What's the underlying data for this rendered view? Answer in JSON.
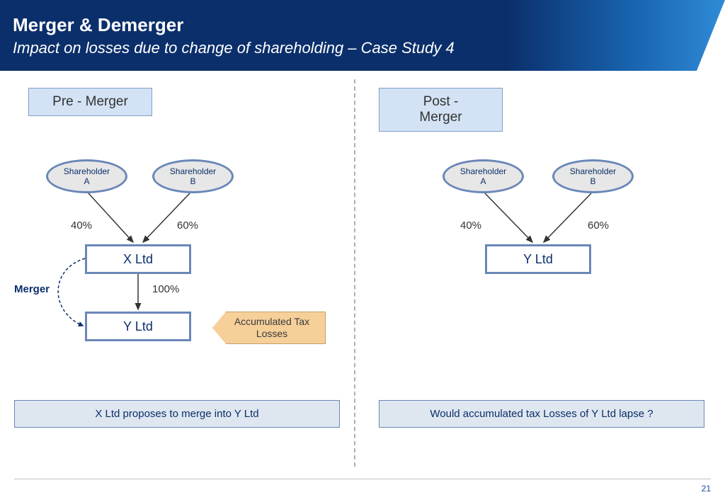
{
  "header": {
    "title": "Merger & Demerger",
    "subtitle": "Impact on losses due to change of shareholding – Case Study 4"
  },
  "left": {
    "badge": "Pre - Merger",
    "shareholderA": "Shareholder\nA",
    "shareholderB": "Shareholder\nB",
    "pctA": "40%",
    "pctB": "60%",
    "pctMid": "100%",
    "entityTop": "X Ltd",
    "entityBottom": "Y Ltd",
    "mergerLabel": "Merger",
    "taxTag": "Accumulated Tax Losses",
    "caption": "X Ltd  proposes to merge into Y Ltd"
  },
  "right": {
    "badge": "Post - Merger",
    "shareholderA": "Shareholder\nA",
    "shareholderB": "Shareholder\nB",
    "pctA": "40%",
    "pctB": "60%",
    "entity": "Y Ltd",
    "caption": "Would accumulated tax Losses of Y Ltd lapse ?"
  },
  "pageNumber": "21",
  "colors": {
    "headerDark": "#0b2f6b",
    "nodeBorder": "#6a87b8",
    "badgeBg": "#d3e3f5",
    "tagBg": "#f6cf99",
    "captionBg": "#dee6ef"
  }
}
